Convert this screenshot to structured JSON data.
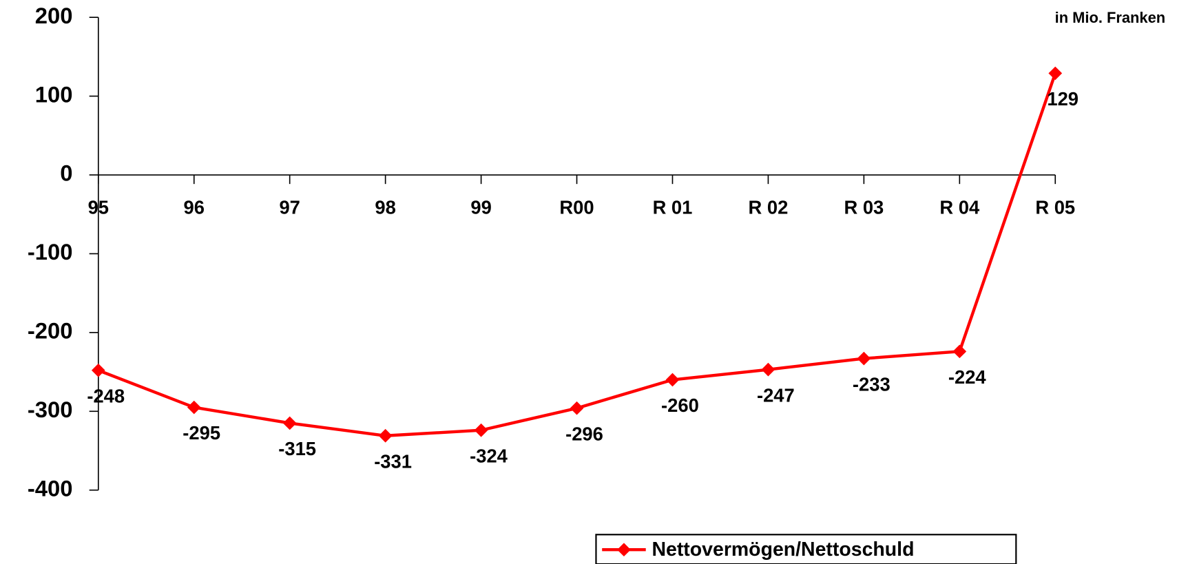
{
  "chart_data": {
    "type": "line",
    "annotation": "in Mio. Franken",
    "categories": [
      "95",
      "96",
      "97",
      "98",
      "99",
      "R00",
      "R 01",
      "R 02",
      "R 03",
      "R 04",
      "R 05"
    ],
    "series": [
      {
        "name": "Nettovermögen/Nettoschuld",
        "color": "#ff0000",
        "values": [
          -248,
          -295,
          -315,
          -331,
          -324,
          -296,
          -260,
          -247,
          -233,
          -224,
          129
        ]
      }
    ],
    "ylim": [
      -400,
      200
    ],
    "yticks": [
      -400,
      -300,
      -200,
      -100,
      0,
      100,
      200
    ],
    "grid": false,
    "legend": "bottom"
  }
}
